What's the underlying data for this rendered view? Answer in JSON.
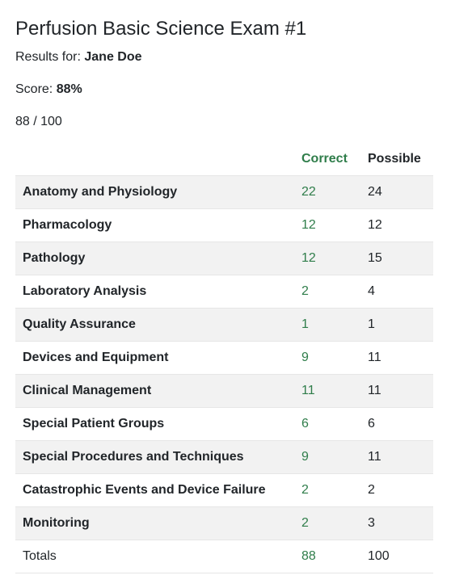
{
  "exam": {
    "title": "Perfusion Basic Science Exam #1",
    "results_label": "Results for:",
    "candidate": "Jane Doe",
    "score_label": "Score:",
    "score_value": "88%",
    "fraction": "88 / 100"
  },
  "table": {
    "headers": {
      "category": "",
      "correct": "Correct",
      "possible": "Possible"
    },
    "rows": [
      {
        "category": "Anatomy and Physiology",
        "correct": "22",
        "possible": "24"
      },
      {
        "category": "Pharmacology",
        "correct": "12",
        "possible": "12"
      },
      {
        "category": "Pathology",
        "correct": "12",
        "possible": "15"
      },
      {
        "category": "Laboratory Analysis",
        "correct": "2",
        "possible": "4"
      },
      {
        "category": "Quality Assurance",
        "correct": "1",
        "possible": "1"
      },
      {
        "category": "Devices and Equipment",
        "correct": "9",
        "possible": "11"
      },
      {
        "category": "Clinical Management",
        "correct": "11",
        "possible": "11"
      },
      {
        "category": "Special Patient Groups",
        "correct": "6",
        "possible": "6"
      },
      {
        "category": "Special Procedures and Techniques",
        "correct": "9",
        "possible": "11"
      },
      {
        "category": "Catastrophic Events and Device Failure",
        "correct": "2",
        "possible": "2"
      },
      {
        "category": "Monitoring",
        "correct": "2",
        "possible": "3"
      }
    ],
    "totals": {
      "label": "Totals",
      "correct": "88",
      "possible": "100"
    }
  },
  "colors": {
    "correct": "#2f7d4a",
    "stripe": "#f2f2f2",
    "text": "#212529"
  }
}
